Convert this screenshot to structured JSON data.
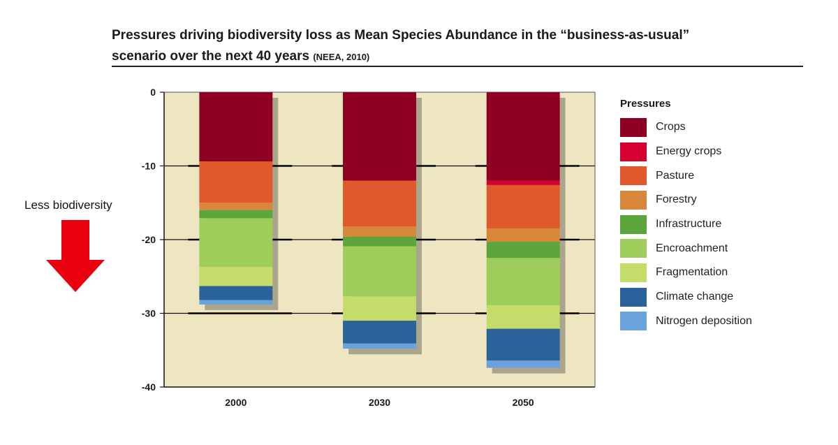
{
  "title": {
    "line1": "Pressures driving biodiversity loss as Mean Species Abundance in the “business-as-usual”",
    "line2": "scenario over the next 40 years",
    "source": "(NEEA, 2010)"
  },
  "side_label": "Less biodiversity",
  "colors": {
    "plot_bg": "#ede6c1",
    "arrow": "#e8000f"
  },
  "chart_data": {
    "type": "bar",
    "stacked": true,
    "categories": [
      "2000",
      "2030",
      "2050"
    ],
    "ylim": [
      -40,
      0
    ],
    "yticks": [
      0,
      -10,
      -20,
      -30,
      -40
    ],
    "ytick_labels": [
      "0",
      "-10",
      "-20",
      "-30",
      "-40"
    ],
    "grid": true,
    "legend_title": "Pressures",
    "legend_position": "right",
    "series": [
      {
        "name": "Crops",
        "color": "#8e0022",
        "values": [
          -9.4,
          -12.0,
          -12.0
        ]
      },
      {
        "name": "Energy crops",
        "color": "#d40032",
        "values": [
          0,
          0,
          -0.6
        ]
      },
      {
        "name": "Pasture",
        "color": "#e0582c",
        "values": [
          -5.6,
          -6.2,
          -5.9
        ]
      },
      {
        "name": "Forestry",
        "color": "#d8873a",
        "values": [
          -1.0,
          -1.4,
          -1.8
        ]
      },
      {
        "name": "Infrastructure",
        "color": "#5ba53b",
        "values": [
          -1.1,
          -1.3,
          -2.2
        ]
      },
      {
        "name": "Encroachment",
        "color": "#9ecd5c",
        "values": [
          -6.6,
          -6.8,
          -6.4
        ]
      },
      {
        "name": "Fragmentation",
        "color": "#c4dd6a",
        "values": [
          -2.6,
          -3.3,
          -3.2
        ]
      },
      {
        "name": "Climate change",
        "color": "#2b6299",
        "values": [
          -1.9,
          -3.1,
          -4.3
        ]
      },
      {
        "name": "Nitrogen deposition",
        "color": "#6aa2dc",
        "values": [
          -0.6,
          -0.7,
          -1.0
        ]
      }
    ]
  }
}
